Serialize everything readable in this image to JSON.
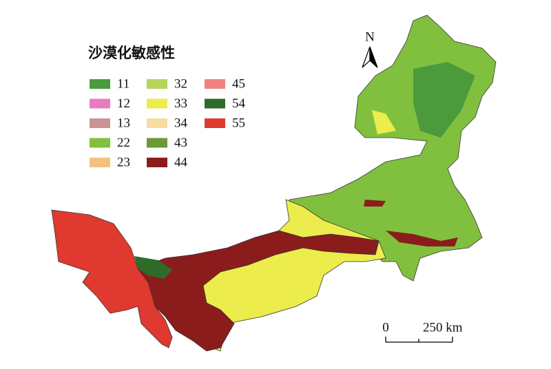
{
  "legend": {
    "title": "沙漠化敏感性",
    "items": [
      {
        "label": "11",
        "color": "#4b9a3c"
      },
      {
        "label": "12",
        "color": "#e57cbf"
      },
      {
        "label": "13",
        "color": "#c99393"
      },
      {
        "label": "22",
        "color": "#80c03e"
      },
      {
        "label": "23",
        "color": "#f6c07f"
      },
      {
        "label": "32",
        "color": "#b6d55b"
      },
      {
        "label": "33",
        "color": "#ecec4c"
      },
      {
        "label": "34",
        "color": "#f8dca2"
      },
      {
        "label": "43",
        "color": "#6b9a35"
      },
      {
        "label": "44",
        "color": "#8b1c1c"
      },
      {
        "label": "45",
        "color": "#f08282"
      },
      {
        "label": "54",
        "color": "#2f6b2b"
      },
      {
        "label": "55",
        "color": "#e0392f"
      }
    ]
  },
  "north_arrow": {
    "label": "N"
  },
  "scale_bar": {
    "start_label": "0",
    "end_label": "250 km"
  }
}
